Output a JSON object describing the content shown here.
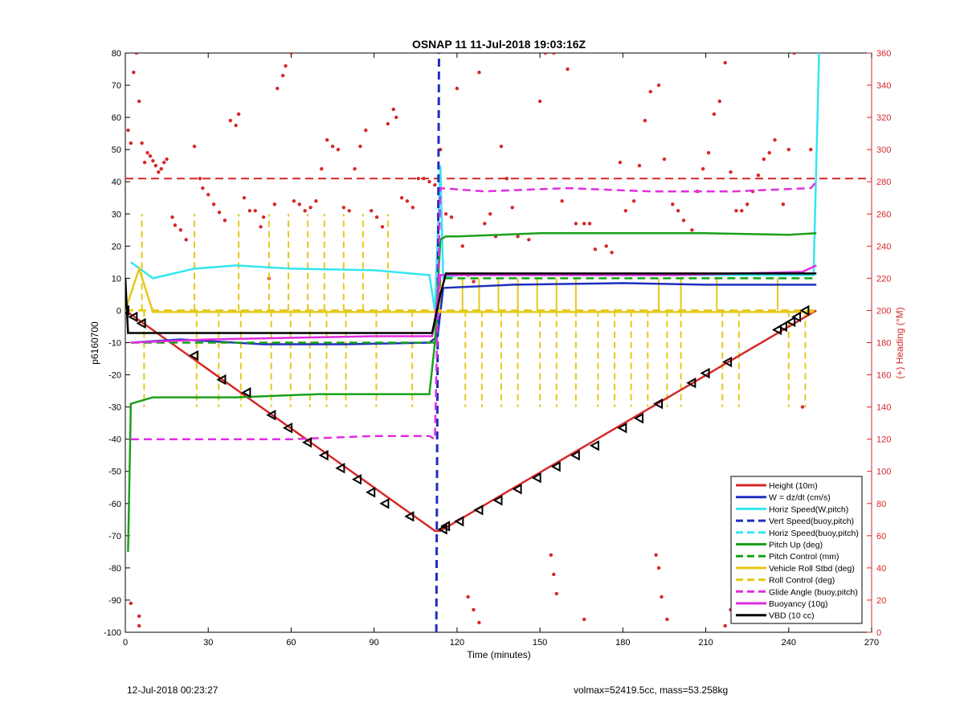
{
  "chart_data": {
    "type": "line",
    "title": "OSNAP 11 11-Jul-2018 19:03:16Z",
    "xlabel": "Time (minutes)",
    "ylabel": "p6160700",
    "y2label": "(+) Heading (°M)",
    "xlim": [
      0,
      270
    ],
    "ylim": [
      -100,
      80
    ],
    "y2lim": [
      0,
      360
    ],
    "x_ticks": [
      0,
      30,
      60,
      90,
      120,
      150,
      180,
      210,
      240,
      270
    ],
    "y_ticks": [
      -100,
      -90,
      -80,
      -70,
      -60,
      -50,
      -40,
      -30,
      -20,
      -10,
      0,
      10,
      20,
      30,
      40,
      50,
      60,
      70,
      80
    ],
    "y2_ticks": [
      0,
      20,
      40,
      60,
      80,
      100,
      120,
      140,
      160,
      180,
      200,
      220,
      240,
      260,
      280,
      300,
      320,
      340,
      360
    ],
    "grid": false,
    "legend_position": "bottom-right",
    "legend": [
      {
        "label": "Height (10m)",
        "color": "#d62728",
        "style": "solid"
      },
      {
        "label": "W = dz/dt (cm/s)",
        "color": "#1f2fbf",
        "style": "solid"
      },
      {
        "label": "Horiz Speed(W,pitch)",
        "color": "#33e6f0",
        "style": "solid"
      },
      {
        "label": "Vert Speed(buoy,pitch)",
        "color": "#1f2fbf",
        "style": "dashed"
      },
      {
        "label": "Horiz Speed(buoy,pitch)",
        "color": "#33e6f0",
        "style": "dashed"
      },
      {
        "label": "Pitch Up (deg)",
        "color": "#1aa01a",
        "style": "solid"
      },
      {
        "label": "Pitch Control (mm)",
        "color": "#1aa01a",
        "style": "dashed"
      },
      {
        "label": "Vehicle Roll Stbd (deg)",
        "color": "#e6c81a",
        "style": "solid"
      },
      {
        "label": "Roll Control (deg)",
        "color": "#e6c81a",
        "style": "dashed"
      },
      {
        "label": "Glide Angle (buoy,pitch)",
        "color": "#e02ee0",
        "style": "dashed"
      },
      {
        "label": "Buoyancy (10g)",
        "color": "#e02ee0",
        "style": "solid"
      },
      {
        "label": "VBD (10 cc)",
        "color": "#000000",
        "style": "solid"
      }
    ],
    "series": [
      {
        "name": "Height (10m)",
        "color": "#d62728",
        "style": "solid",
        "x": [
          0,
          112,
          114,
          250
        ],
        "y": [
          0,
          -68.5,
          -68.5,
          0
        ]
      },
      {
        "name": "W = dz/dt (cm/s)",
        "color": "#1f2fbf",
        "style": "solid",
        "x": [
          2,
          20,
          50,
          80,
          110,
          113,
          115,
          140,
          180,
          210,
          240,
          250
        ],
        "y": [
          -10,
          -9,
          -10.5,
          -10.5,
          -10,
          -8,
          7,
          8,
          8.5,
          8,
          8,
          8
        ]
      },
      {
        "name": "Horiz Speed(W,pitch)",
        "color": "#33e6f0",
        "style": "solid",
        "x": [
          2,
          10,
          25,
          40,
          60,
          90,
          110,
          112,
          114,
          115,
          120,
          150,
          180,
          210,
          240,
          249,
          251
        ],
        "y": [
          15,
          10,
          13,
          14,
          13,
          12.5,
          11,
          0,
          45,
          10,
          11,
          11,
          11,
          11,
          11,
          11,
          80
        ]
      },
      {
        "name": "Vert Speed(buoy,pitch)",
        "color": "#1f2fbf",
        "style": "dashed",
        "x": [
          112.5,
          113.5
        ],
        "y": [
          -100,
          80
        ]
      },
      {
        "name": "Horiz Speed(buoy,pitch)",
        "color": "#33e6f0",
        "style": "dashed",
        "x": [
          115,
          250
        ],
        "y": [
          11,
          11
        ]
      },
      {
        "name": "Pitch Up (deg)",
        "color": "#1aa01a",
        "style": "solid",
        "x": [
          1,
          2,
          10,
          40,
          70,
          100,
          110,
          112,
          114,
          116,
          120,
          150,
          180,
          210,
          240,
          250
        ],
        "y": [
          -75,
          -29,
          -27,
          -27,
          -26,
          -26,
          -26,
          -10,
          22,
          23,
          23,
          24,
          24,
          24,
          23.5,
          24
        ]
      },
      {
        "name": "Pitch Control (mm)",
        "color": "#1aa01a",
        "style": "dashed",
        "x": [
          2,
          112,
          114,
          250
        ],
        "y": [
          -10,
          -10,
          10,
          10
        ]
      },
      {
        "name": "Vehicle Roll Stbd (deg)",
        "color": "#e6c81a",
        "style": "solid",
        "x": [
          0,
          5,
          10,
          40,
          80,
          110,
          112,
          114,
          150,
          200,
          249
        ],
        "y": [
          0,
          13,
          -0.5,
          -0.5,
          -0.5,
          -0.5,
          -0.5,
          -0.5,
          -0.5,
          -0.5,
          -0.5
        ]
      },
      {
        "name": "Roll Control (deg)",
        "color": "#e6c81a",
        "style": "dashed",
        "x": [
          0,
          112,
          114,
          250
        ],
        "y": [
          0,
          0,
          0,
          0
        ]
      },
      {
        "name": "Glide Angle (buoy,pitch)",
        "color": "#e02ee0",
        "style": "dashed",
        "x": [
          2,
          30,
          60,
          90,
          110,
          112,
          114,
          130,
          160,
          190,
          220,
          248,
          250
        ],
        "y": [
          -40,
          -40,
          -40,
          -39,
          -39,
          -40,
          38,
          37,
          38,
          37,
          37,
          38,
          40
        ]
      },
      {
        "name": "Buoyancy (10g)",
        "color": "#e02ee0",
        "style": "solid",
        "x": [
          2,
          30,
          60,
          90,
          111,
          112,
          114,
          150,
          200,
          245,
          250
        ],
        "y": [
          -10,
          -9,
          -8.5,
          -8,
          -8,
          -3,
          11,
          11,
          11,
          12,
          14
        ]
      },
      {
        "name": "VBD (10 cc)",
        "color": "#000000",
        "style": "solid",
        "x": [
          0,
          1,
          111,
          114,
          116,
          250
        ],
        "y": [
          10,
          -7,
          -7,
          5,
          11.5,
          11.5
        ]
      },
      {
        "name": "Heading markers",
        "color": "#000000",
        "style": "markers",
        "x": [
          0,
          3,
          6,
          25,
          35,
          44,
          53,
          59,
          66,
          72,
          78,
          84,
          89,
          94,
          103,
          115,
          116,
          121,
          128,
          135,
          142,
          149,
          156,
          163,
          170,
          180,
          186,
          193,
          205,
          210,
          218,
          236,
          238,
          241,
          243,
          246
        ],
        "y": [
          0,
          -2,
          -4,
          -14,
          -21.5,
          -25.5,
          -32.5,
          -36.5,
          -41,
          -45,
          -49,
          -52.5,
          -56.5,
          -60,
          -64,
          -68,
          -67,
          -65.5,
          -62,
          -59,
          -55.5,
          -52,
          -48.5,
          -45,
          -42,
          -36.5,
          -33.5,
          -29,
          -22.5,
          -19.5,
          -16,
          -6,
          -5,
          -3.5,
          -2,
          0
        ]
      }
    ],
    "heading_dots": [
      [
        1,
        312
      ],
      [
        2,
        304
      ],
      [
        3,
        348
      ],
      [
        4,
        360
      ],
      [
        5,
        330
      ],
      [
        6,
        304
      ],
      [
        7,
        292
      ],
      [
        8,
        298
      ],
      [
        9,
        296
      ],
      [
        10,
        293
      ],
      [
        11,
        290
      ],
      [
        12,
        286
      ],
      [
        13,
        288
      ],
      [
        14,
        292
      ],
      [
        15,
        294
      ],
      [
        17,
        258
      ],
      [
        18,
        253
      ],
      [
        20,
        250
      ],
      [
        22,
        244
      ],
      [
        25,
        302
      ],
      [
        27,
        282
      ],
      [
        28,
        276
      ],
      [
        30,
        272
      ],
      [
        32,
        266
      ],
      [
        34,
        261
      ],
      [
        36,
        256
      ],
      [
        38,
        318
      ],
      [
        40,
        315
      ],
      [
        41,
        322
      ],
      [
        43,
        270
      ],
      [
        45,
        262
      ],
      [
        47,
        262
      ],
      [
        49,
        252
      ],
      [
        50,
        258
      ],
      [
        52,
        220
      ],
      [
        54,
        266
      ],
      [
        55,
        338
      ],
      [
        57,
        346
      ],
      [
        58,
        352
      ],
      [
        60,
        360
      ],
      [
        61,
        268
      ],
      [
        63,
        266
      ],
      [
        65,
        262
      ],
      [
        67,
        264
      ],
      [
        69,
        268
      ],
      [
        71,
        288
      ],
      [
        73,
        306
      ],
      [
        75,
        302
      ],
      [
        77,
        300
      ],
      [
        79,
        264
      ],
      [
        81,
        262
      ],
      [
        83,
        288
      ],
      [
        85,
        302
      ],
      [
        87,
        312
      ],
      [
        89,
        262
      ],
      [
        91,
        258
      ],
      [
        93,
        252
      ],
      [
        95,
        316
      ],
      [
        97,
        325
      ],
      [
        98,
        320
      ],
      [
        100,
        270
      ],
      [
        102,
        268
      ],
      [
        104,
        264
      ],
      [
        106,
        282
      ],
      [
        108,
        282
      ],
      [
        110,
        280
      ],
      [
        112,
        278
      ],
      [
        114,
        300
      ],
      [
        116,
        260
      ],
      [
        118,
        258
      ],
      [
        120,
        338
      ],
      [
        122,
        240
      ],
      [
        124,
        222
      ],
      [
        126,
        218
      ],
      [
        128,
        348
      ],
      [
        130,
        254
      ],
      [
        132,
        260
      ],
      [
        134,
        246
      ],
      [
        136,
        302
      ],
      [
        138,
        282
      ],
      [
        140,
        264
      ],
      [
        142,
        246
      ],
      [
        146,
        244
      ],
      [
        150,
        330
      ],
      [
        152,
        360
      ],
      [
        155,
        360
      ],
      [
        158,
        268
      ],
      [
        160,
        350
      ],
      [
        163,
        254
      ],
      [
        166,
        254
      ],
      [
        168,
        254
      ],
      [
        170,
        238
      ],
      [
        174,
        240
      ],
      [
        176,
        236
      ],
      [
        179,
        292
      ],
      [
        181,
        262
      ],
      [
        184,
        268
      ],
      [
        186,
        290
      ],
      [
        188,
        318
      ],
      [
        190,
        336
      ],
      [
        193,
        340
      ],
      [
        195,
        294
      ],
      [
        198,
        266
      ],
      [
        200,
        262
      ],
      [
        202,
        256
      ],
      [
        205,
        250
      ],
      [
        207,
        274
      ],
      [
        209,
        288
      ],
      [
        211,
        298
      ],
      [
        213,
        322
      ],
      [
        215,
        330
      ],
      [
        217,
        354
      ],
      [
        219,
        286
      ],
      [
        221,
        262
      ],
      [
        223,
        262
      ],
      [
        225,
        266
      ],
      [
        227,
        274
      ],
      [
        229,
        284
      ],
      [
        231,
        294
      ],
      [
        233,
        298
      ],
      [
        235,
        306
      ],
      [
        238,
        266
      ],
      [
        240,
        300
      ],
      [
        242,
        360
      ],
      [
        245,
        140
      ],
      [
        248,
        300
      ],
      [
        2,
        18
      ],
      [
        5,
        10
      ],
      [
        5,
        4
      ],
      [
        124,
        22
      ],
      [
        126,
        14
      ],
      [
        128,
        6
      ],
      [
        154,
        48
      ],
      [
        155,
        36
      ],
      [
        156,
        24
      ],
      [
        166,
        8
      ],
      [
        192,
        48
      ],
      [
        193,
        40
      ],
      [
        194,
        22
      ],
      [
        196,
        8
      ],
      [
        217,
        4
      ],
      [
        219,
        14
      ],
      [
        243,
        8
      ]
    ],
    "reference_line": {
      "y2": 282,
      "color": "#d62728",
      "style": "dashed"
    }
  },
  "footer": {
    "left": "12-Jul-2018 00:23:27",
    "right": "volmax=52419.5cc, mass=53.258kg"
  },
  "colors": {
    "axis": "#000000",
    "right_axis": "#d62728",
    "heading_dots": "#d62728"
  }
}
